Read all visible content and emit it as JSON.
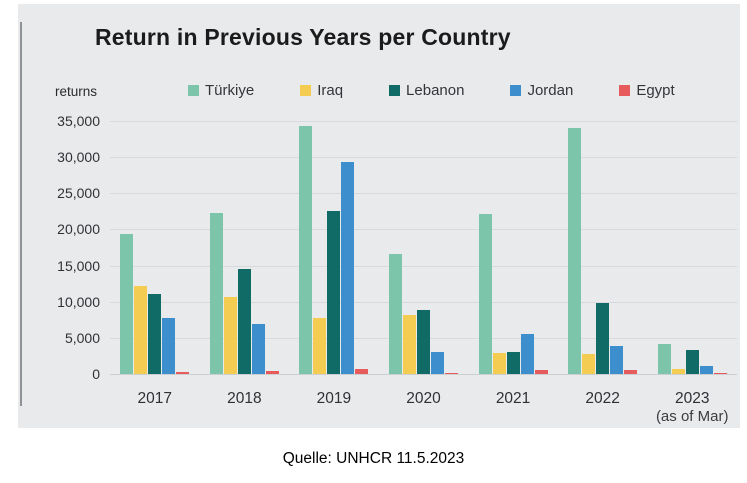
{
  "chart_data": {
    "type": "bar",
    "title": "Return in Previous Years per Country",
    "ylabel": "returns",
    "xlabel": "",
    "ylim": [
      0,
      35000
    ],
    "ytick_step": 5000,
    "grid": true,
    "legend_position": "top",
    "categories": [
      "2017",
      "2018",
      "2019",
      "2020",
      "2021",
      "2022",
      "2023"
    ],
    "category_sublabels": [
      "",
      "",
      "",
      "",
      "",
      "",
      "(as of Mar)"
    ],
    "series": [
      {
        "name": "Türkiye",
        "color": "#7cc5ab",
        "values": [
          19400,
          22300,
          34300,
          16600,
          22100,
          34000,
          4100
        ]
      },
      {
        "name": "Iraq",
        "color": "#f4cc52",
        "values": [
          12200,
          10700,
          7800,
          8100,
          2900,
          2800,
          700
        ]
      },
      {
        "name": "Lebanon",
        "color": "#106b66",
        "values": [
          11100,
          14500,
          22500,
          8900,
          3100,
          9800,
          3300
        ]
      },
      {
        "name": "Jordan",
        "color": "#3d8ecc",
        "values": [
          7700,
          6900,
          29300,
          3100,
          5500,
          3900,
          1100
        ]
      },
      {
        "name": "Egypt",
        "color": "#e85b5c",
        "values": [
          300,
          400,
          700,
          100,
          500,
          600,
          100
        ]
      }
    ]
  },
  "source_note": "Quelle: UNHCR 11.5.2023",
  "colors": {
    "card_background": "#e9eaec",
    "page_background": "#ffffff",
    "gridline": "#d7d9dc",
    "title_text": "#1b1b1b",
    "axis_text": "#2f3235"
  }
}
